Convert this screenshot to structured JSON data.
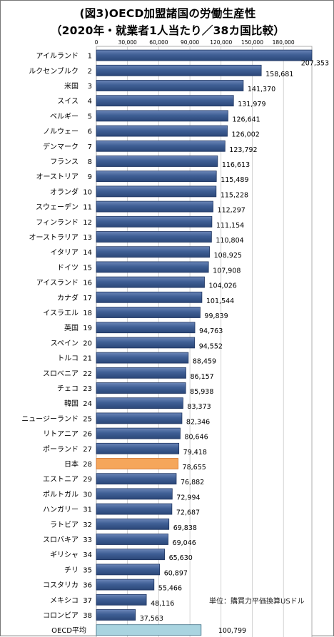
{
  "chart_data": {
    "type": "bar",
    "orientation": "horizontal",
    "title": "(図3)OECD加盟諸国の労働生産性",
    "subtitle": "（2020年・就業者1人当たり／38カ国比較）",
    "unit_note": "単位：購買力平価換算USドル",
    "xlim": [
      0,
      207353
    ],
    "x_ticks": [
      "0",
      "30,000",
      "60,000",
      "90,000",
      "120,000",
      "150,000",
      "180,000"
    ],
    "x_tick_values": [
      0,
      30000,
      60000,
      90000,
      120000,
      150000,
      180000
    ],
    "highlight_color": "#f5a65b",
    "bar_color": "#3b5a8f",
    "average_color": "#a9d4e0",
    "categories": [
      {
        "country": "アイルランド",
        "rank": "1",
        "value": 207353,
        "label": "207,353"
      },
      {
        "country": "ルクセンブルク",
        "rank": "2",
        "value": 158681,
        "label": "158,681"
      },
      {
        "country": "米国",
        "rank": "3",
        "value": 141370,
        "label": "141,370"
      },
      {
        "country": "スイス",
        "rank": "4",
        "value": 131979,
        "label": "131,979"
      },
      {
        "country": "ベルギー",
        "rank": "5",
        "value": 126641,
        "label": "126,641"
      },
      {
        "country": "ノルウェー",
        "rank": "6",
        "value": 126002,
        "label": "126,002"
      },
      {
        "country": "デンマーク",
        "rank": "7",
        "value": 123792,
        "label": "123,792"
      },
      {
        "country": "フランス",
        "rank": "8",
        "value": 116613,
        "label": "116,613"
      },
      {
        "country": "オーストリア",
        "rank": "9",
        "value": 115489,
        "label": "115,489"
      },
      {
        "country": "オランダ",
        "rank": "10",
        "value": 115228,
        "label": "115,228"
      },
      {
        "country": "スウェーデン",
        "rank": "11",
        "value": 112297,
        "label": "112,297"
      },
      {
        "country": "フィンランド",
        "rank": "12",
        "value": 111154,
        "label": "111,154"
      },
      {
        "country": "オーストラリア",
        "rank": "13",
        "value": 110804,
        "label": "110,804"
      },
      {
        "country": "イタリア",
        "rank": "14",
        "value": 108925,
        "label": "108,925"
      },
      {
        "country": "ドイツ",
        "rank": "15",
        "value": 107908,
        "label": "107,908"
      },
      {
        "country": "アイスランド",
        "rank": "16",
        "value": 104026,
        "label": "104,026"
      },
      {
        "country": "カナダ",
        "rank": "17",
        "value": 101544,
        "label": "101,544"
      },
      {
        "country": "イスラエル",
        "rank": "18",
        "value": 99839,
        "label": "99,839"
      },
      {
        "country": "英国",
        "rank": "19",
        "value": 94763,
        "label": "94,763"
      },
      {
        "country": "スペイン",
        "rank": "20",
        "value": 94552,
        "label": "94,552"
      },
      {
        "country": "トルコ",
        "rank": "21",
        "value": 88459,
        "label": "88,459"
      },
      {
        "country": "スロベニア",
        "rank": "22",
        "value": 86157,
        "label": "86,157"
      },
      {
        "country": "チェコ",
        "rank": "23",
        "value": 85938,
        "label": "85,938"
      },
      {
        "country": "韓国",
        "rank": "24",
        "value": 83373,
        "label": "83,373"
      },
      {
        "country": "ニュージーランド",
        "rank": "25",
        "value": 82346,
        "label": "82,346"
      },
      {
        "country": "リトアニア",
        "rank": "26",
        "value": 80646,
        "label": "80,646"
      },
      {
        "country": "ポーランド",
        "rank": "27",
        "value": 79418,
        "label": "79,418"
      },
      {
        "country": "日本",
        "rank": "28",
        "value": 78655,
        "label": "78,655",
        "highlight": true
      },
      {
        "country": "エストニア",
        "rank": "29",
        "value": 76882,
        "label": "76,882"
      },
      {
        "country": "ポルトガル",
        "rank": "30",
        "value": 72994,
        "label": "72,994"
      },
      {
        "country": "ハンガリー",
        "rank": "31",
        "value": 72687,
        "label": "72,687"
      },
      {
        "country": "ラトビア",
        "rank": "32",
        "value": 69838,
        "label": "69,838"
      },
      {
        "country": "スロバキア",
        "rank": "33",
        "value": 69046,
        "label": "69,046"
      },
      {
        "country": "ギリシャ",
        "rank": "34",
        "value": 65630,
        "label": "65,630"
      },
      {
        "country": "チリ",
        "rank": "35",
        "value": 60897,
        "label": "60,897"
      },
      {
        "country": "コスタリカ",
        "rank": "36",
        "value": 55466,
        "label": "55,466"
      },
      {
        "country": "メキシコ",
        "rank": "37",
        "value": 48116,
        "label": "48,116"
      },
      {
        "country": "コロンビア",
        "rank": "38",
        "value": 37563,
        "label": "37,563"
      },
      {
        "country": "OECD平均",
        "rank": "",
        "value": 100799,
        "label": "100,799",
        "average": true
      }
    ]
  }
}
